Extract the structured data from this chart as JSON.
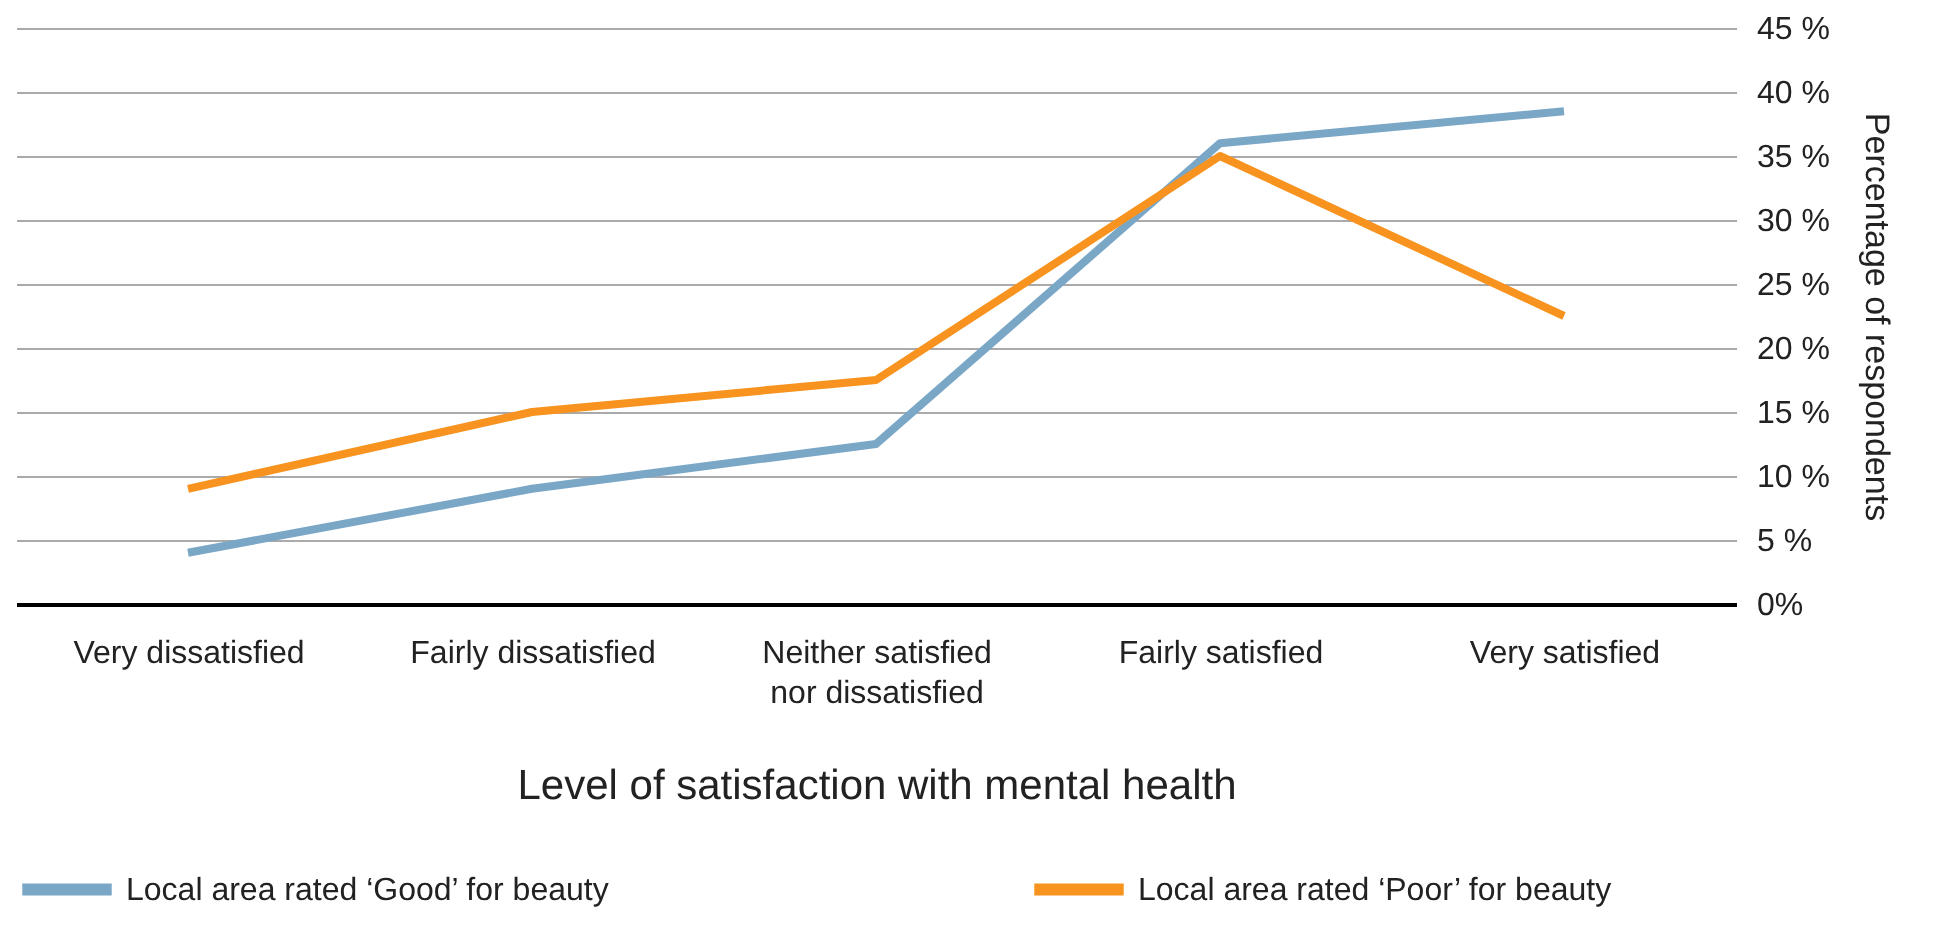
{
  "chart_data": {
    "type": "line",
    "categories": [
      "Very dissatisfied",
      "Fairly dissatisfied",
      "Neither satisfied\nnor dissatisfied",
      "Fairly satisfied",
      "Very satisfied"
    ],
    "series": [
      {
        "name": "Local area rated ‘Good’ for beauty",
        "color": "#7ba7c7",
        "values": [
          4,
          9,
          12.5,
          36,
          38.5
        ]
      },
      {
        "name": "Local area rated ‘Poor’ for beauty",
        "color": "#f7931e",
        "values": [
          9,
          15,
          17.5,
          35,
          22.5
        ]
      }
    ],
    "xlabel": "Level of satisfaction with mental health",
    "ylabel": "Percentage of respondents",
    "ylim": [
      0,
      45
    ],
    "yticks": [
      {
        "value": 0,
        "label": "0%"
      },
      {
        "value": 5,
        "label": "5 %"
      },
      {
        "value": 10,
        "label": "10 %"
      },
      {
        "value": 15,
        "label": "15 %"
      },
      {
        "value": 20,
        "label": "20 %"
      },
      {
        "value": 25,
        "label": "25 %"
      },
      {
        "value": 30,
        "label": "30 %"
      },
      {
        "value": 35,
        "label": "35 %"
      },
      {
        "value": 40,
        "label": "40 %"
      },
      {
        "value": 45,
        "label": "45 %"
      }
    ],
    "grid": "y",
    "legend": "bottom",
    "marker": "none",
    "line_style": "solid"
  }
}
